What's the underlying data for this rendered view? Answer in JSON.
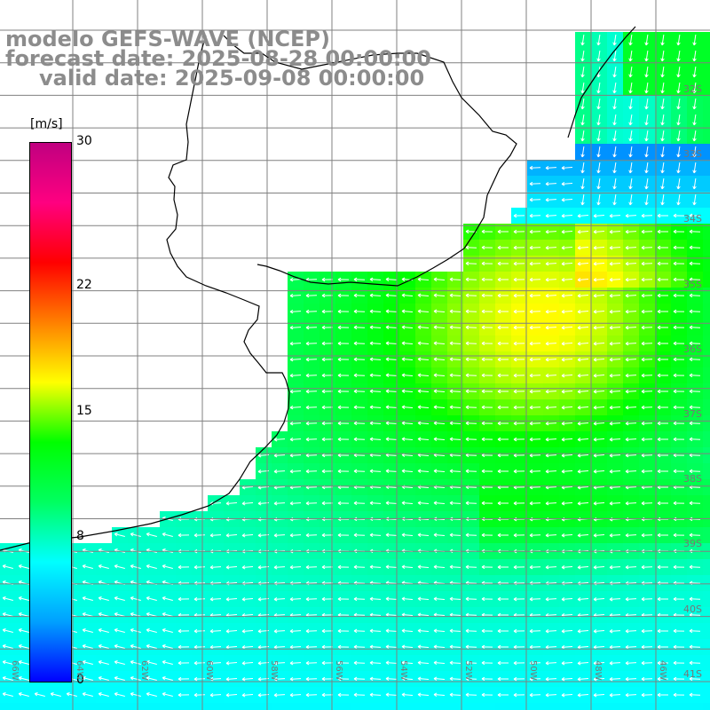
{
  "title": {
    "model": "modelo GEFS-WAVE (NCEP)",
    "forecast": "forecast date: 2025-08-28 00:00:00",
    "valid": "valid date: 2025-09-08 00:00:00"
  },
  "colorbar": {
    "unit": "[m/s]",
    "min": 0,
    "max": 30,
    "ticks": [
      "30",
      "22",
      "15",
      "8",
      "0"
    ],
    "tick_values": [
      30,
      22,
      15,
      8,
      0
    ],
    "colors": [
      "#0000ff",
      "#00a0ff",
      "#00ffff",
      "#00ff60",
      "#00ff00",
      "#ffff00",
      "#ff8000",
      "#ff0000",
      "#ff0080",
      "#c00080"
    ]
  },
  "map": {
    "variable": "wind speed and direction",
    "lat_labels": [
      "32S",
      "33S",
      "34S",
      "35S",
      "36S",
      "37S",
      "38S",
      "39S",
      "40S",
      "41S"
    ],
    "lon_labels": [
      "66W",
      "64W",
      "62W",
      "60W",
      "58W",
      "56W",
      "54W",
      "52W",
      "50W",
      "48W",
      "46W"
    ],
    "grid_color": "#808080",
    "coast_color": "#000000",
    "arrow_color": "#ffffff",
    "dominant_wind_direction": "westward"
  }
}
